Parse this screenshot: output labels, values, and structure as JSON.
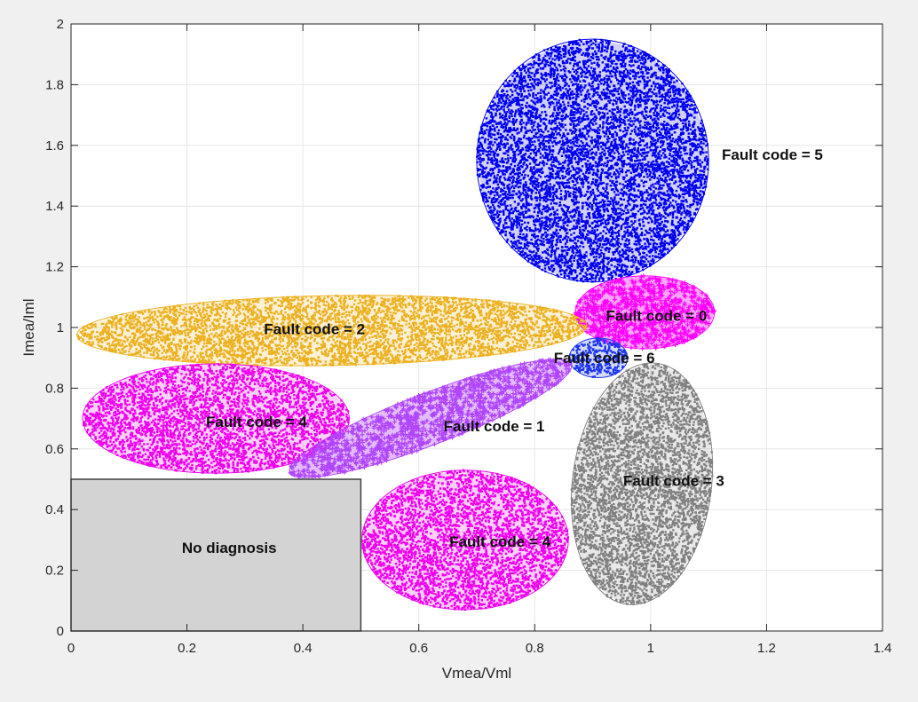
{
  "chart_data": {
    "type": "scatter",
    "title": "",
    "xlabel": "Vmea/Vml",
    "ylabel": "Imea/Iml",
    "xlim": [
      0,
      1.4
    ],
    "ylim": [
      0,
      2
    ],
    "xticks": [
      0,
      0.2,
      0.4,
      0.6,
      0.8,
      1,
      1.2,
      1.4
    ],
    "yticks": [
      0,
      0.2,
      0.4,
      0.6,
      0.8,
      1,
      1.2,
      1.4,
      1.6,
      1.8,
      2
    ],
    "xtick_labels": [
      "0",
      "0.2",
      "0.4",
      "0.6",
      "0.8",
      "1",
      "1.2",
      "1.4"
    ],
    "ytick_labels": [
      "0",
      "0.2",
      "0.4",
      "0.6",
      "0.8",
      "1",
      "1.2",
      "1.4",
      "1.6",
      "1.8",
      "2"
    ],
    "grid": true,
    "regions": [
      {
        "name": "Fault code = 5",
        "label": "Fault code = 5",
        "color": "#0000ee",
        "marker": "dot",
        "center": [
          0.9,
          1.55
        ],
        "rx": 0.2,
        "ry": 0.4,
        "angle": 0,
        "label_at": [
          1.21,
          1.57
        ]
      },
      {
        "name": "Fault code = 0",
        "label": "Fault code = 0",
        "color": "#ff00ff",
        "marker": "plus",
        "center": [
          0.99,
          1.05
        ],
        "rx": 0.12,
        "ry": 0.12,
        "angle": 0,
        "label_at": [
          1.01,
          1.04
        ]
      },
      {
        "name": "Fault code = 2",
        "label": "Fault code = 2",
        "color": "#edb120",
        "marker": "dot",
        "center": [
          0.45,
          0.99
        ],
        "rx": 0.44,
        "ry": 0.115,
        "angle": 1,
        "label_at": [
          0.42,
          0.995
        ]
      },
      {
        "name": "Fault code = 6",
        "label": "Fault code = 6",
        "color": "#1c35ee",
        "marker": "dot",
        "center": [
          0.91,
          0.9
        ],
        "rx": 0.05,
        "ry": 0.065,
        "angle": 0,
        "label_at": [
          0.92,
          0.9
        ]
      },
      {
        "name": "Fault code = 4",
        "label": "Fault code = 4",
        "color": "#ee00ee",
        "marker": "dot",
        "center": [
          0.25,
          0.7
        ],
        "rx": 0.23,
        "ry": 0.18,
        "angle": 0,
        "label_at": [
          0.32,
          0.69
        ]
      },
      {
        "name": "Fault code = 1",
        "label": "Fault code = 1",
        "color": "#b044ff",
        "marker": "plus",
        "center": [
          0.62,
          0.7
        ],
        "rx": 0.26,
        "ry": 0.085,
        "angle": 21,
        "label_at": [
          0.73,
          0.675
        ]
      },
      {
        "name": "Fault code = 3",
        "label": "Fault code = 3",
        "color": "#808080",
        "marker": "dot",
        "center": [
          0.985,
          0.485
        ],
        "rx": 0.12,
        "ry": 0.4,
        "angle": -7,
        "label_at": [
          1.04,
          0.495
        ]
      },
      {
        "name": "Fault code = 4",
        "label": "Fault code = 4",
        "color": "#ee00ee",
        "marker": "dot",
        "center": [
          0.68,
          0.3
        ],
        "rx": 0.178,
        "ry": 0.23,
        "angle": 0,
        "label_at": [
          0.74,
          0.295
        ]
      }
    ],
    "no_diagnosis": {
      "label": "No diagnosis",
      "x": [
        0,
        0.5
      ],
      "y": [
        0,
        0.5
      ],
      "fill": "#d3d3d3"
    }
  }
}
